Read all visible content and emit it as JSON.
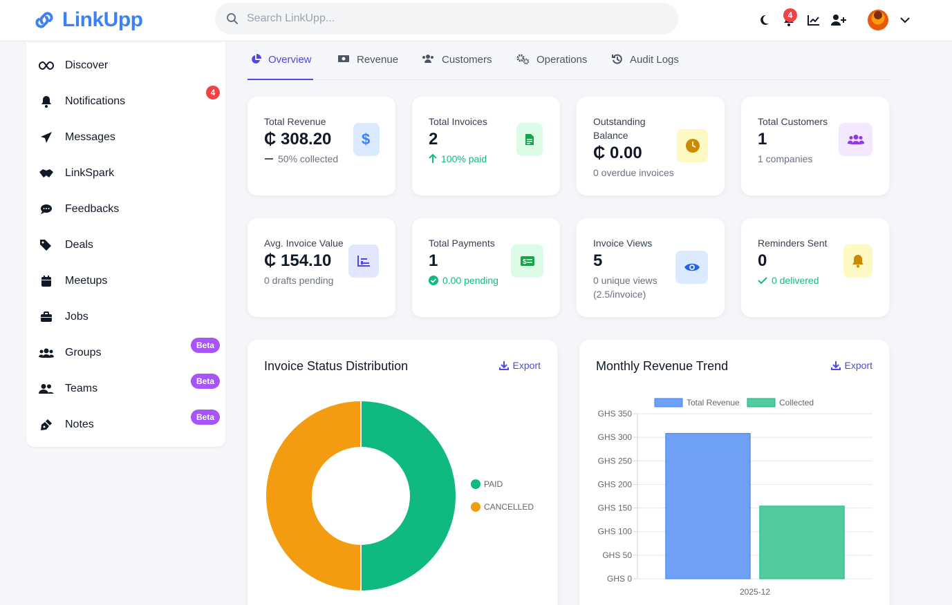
{
  "header": {
    "logo_text": "LinkUpp",
    "search_placeholder": "Search LinkUpp...",
    "notification_count": "4",
    "icons": [
      "moon-icon",
      "bell-icon",
      "chart-line-icon",
      "user-plus-icon",
      "avatar",
      "chevron-down-icon"
    ]
  },
  "sidebar": {
    "items": [
      {
        "label": "Discover",
        "icon": "infinity-icon"
      },
      {
        "label": "Notifications",
        "icon": "bell-icon",
        "badge": "4"
      },
      {
        "label": "Messages",
        "icon": "paper-plane-icon"
      },
      {
        "label": "LinkSpark",
        "icon": "handshake-icon"
      },
      {
        "label": "Feedbacks",
        "icon": "comment-icon"
      },
      {
        "label": "Deals",
        "icon": "tags-icon"
      },
      {
        "label": "Meetups",
        "icon": "calendar-icon"
      },
      {
        "label": "Jobs",
        "icon": "briefcase-icon"
      },
      {
        "label": "Groups",
        "icon": "users-icon",
        "badge": "Beta"
      },
      {
        "label": "Teams",
        "icon": "user-group-icon",
        "badge": "Beta"
      },
      {
        "label": "Notes",
        "icon": "pen-nib-icon",
        "badge": "Beta"
      }
    ]
  },
  "tabs": [
    {
      "label": "Overview",
      "icon": "pie-chart-icon",
      "active": true
    },
    {
      "label": "Revenue",
      "icon": "money-bill-icon"
    },
    {
      "label": "Customers",
      "icon": "users-icon"
    },
    {
      "label": "Operations",
      "icon": "cogs-icon"
    },
    {
      "label": "Audit Logs",
      "icon": "history-icon"
    }
  ],
  "stats": [
    {
      "title": "Total Revenue",
      "value": "₵ 308.20",
      "sub": "50% collected",
      "sub_icon": "minus-icon",
      "icon": "dollar-icon"
    },
    {
      "title": "Total Invoices",
      "value": "2",
      "sub": "100% paid",
      "sub_icon": "arrow-up-icon",
      "icon": "invoice-icon"
    },
    {
      "title": "Outstanding Balance",
      "value": "₵ 0.00",
      "sub": "0 overdue invoices",
      "icon": "clock-icon"
    },
    {
      "title": "Total Customers",
      "value": "1",
      "sub": "1 companies",
      "icon": "users-icon"
    },
    {
      "title": "Avg. Invoice Value",
      "value": "₵ 154.10",
      "sub": "0 drafts pending",
      "icon": "chart-bar-icon"
    },
    {
      "title": "Total Payments",
      "value": "1",
      "sub": "0.00 pending",
      "sub_icon": "check-circle-icon",
      "icon": "money-check-icon"
    },
    {
      "title": "Invoice Views",
      "value": "5",
      "sub": "0 unique views (2.5/invoice)",
      "icon": "eye-icon"
    },
    {
      "title": "Reminders Sent",
      "value": "0",
      "sub": "0 delivered",
      "sub_icon": "check-icon",
      "icon": "bell-icon"
    }
  ],
  "panels": {
    "status": {
      "title": "Invoice Status Distribution",
      "export": "Export"
    },
    "trend": {
      "title": "Monthly Revenue Trend",
      "export": "Export"
    }
  },
  "colors": {
    "accent": "#4f46e5",
    "brand": "#3b82f6",
    "paid": "#10b981",
    "cancelled": "#f39c12",
    "total_revenue_bar": "#6ea1f6",
    "collected_bar": "#52cc9c",
    "badge_red": "#ef4444",
    "beta": "#a855f7"
  },
  "chart_data": [
    {
      "type": "pie",
      "title": "Invoice Status Distribution",
      "categories": [
        "PAID",
        "CANCELLED"
      ],
      "values": [
        1,
        1
      ],
      "colors": [
        "#10b981",
        "#f39c12"
      ],
      "legend": "right"
    },
    {
      "type": "bar",
      "title": "Monthly Revenue Trend",
      "categories": [
        "2025-12"
      ],
      "series": [
        {
          "name": "Total Revenue",
          "values": [
            308.2
          ]
        },
        {
          "name": "Collected",
          "values": [
            154.1
          ]
        }
      ],
      "ylim": [
        0,
        350
      ],
      "yticks": [
        "GHS 0",
        "GHS 50",
        "GHS 100",
        "GHS 150",
        "GHS 200",
        "GHS 250",
        "GHS 300",
        "GHS 350"
      ],
      "ytick_values": [
        0,
        50,
        100,
        150,
        200,
        250,
        300,
        350
      ],
      "legend": "top",
      "grid": true
    }
  ]
}
